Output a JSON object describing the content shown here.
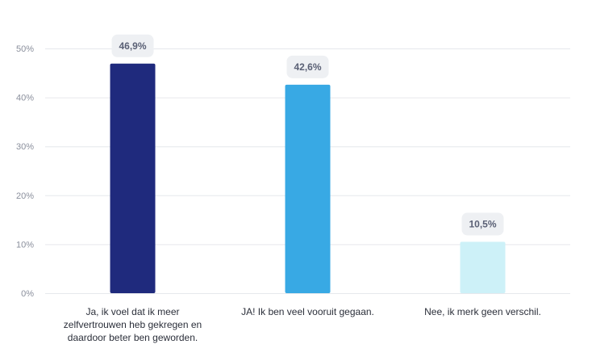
{
  "chart_data": {
    "type": "bar",
    "categories": [
      "Ja, ik voel dat ik meer zelfvertrouwen heb gekregen en daardoor beter ben geworden.",
      "JA! Ik ben veel vooruit gegaan.",
      "Nee, ik merk geen verschil."
    ],
    "category_lines": [
      [
        "Ja, ik voel dat ik meer",
        "zelfvertrouwen heb gekregen en",
        "daardoor beter ben geworden."
      ],
      [
        "JA! Ik ben veel vooruit gegaan."
      ],
      [
        "Nee, ik merk geen verschil."
      ]
    ],
    "values": [
      46.9,
      42.6,
      10.5
    ],
    "value_labels": [
      "46,9%",
      "42,6%",
      "10,5%"
    ],
    "colors": [
      "#1f2a7d",
      "#38a9e4",
      "#cdf1f8"
    ],
    "yticks": [
      0,
      10,
      20,
      30,
      40,
      50
    ],
    "ytick_labels": [
      "0%",
      "10%",
      "20%",
      "30%",
      "40%",
      "50%"
    ],
    "ylim": [
      0,
      50
    ],
    "grid": true,
    "title": "",
    "xlabel": "",
    "ylabel": ""
  }
}
